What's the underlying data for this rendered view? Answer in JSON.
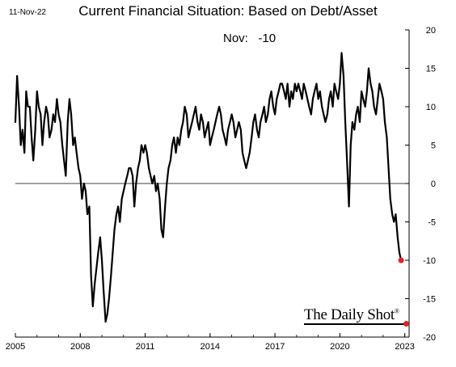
{
  "header": {
    "date_stamp": "11-Nov-22",
    "title": "Current Financial Situation: Based on Debt/Asset"
  },
  "annotation": {
    "month": "Nov:",
    "value": "-10"
  },
  "brand": {
    "name": "The Daily Shot",
    "mark": "®",
    "dot_color": "#e0202a"
  },
  "chart_data": {
    "type": "line",
    "title": "Current Financial Situation: Based on Debt/Asset",
    "xlabel": "",
    "ylabel": "",
    "xlim": [
      2005,
      2023.2
    ],
    "ylim": [
      -20,
      20
    ],
    "x_ticks": [
      "2005",
      "2008",
      "2011",
      "2014",
      "2017",
      "2020",
      "2023"
    ],
    "y_ticks": [
      "20",
      "15",
      "10",
      "5",
      "0",
      "-5",
      "-10",
      "-15",
      "-20"
    ],
    "y_axis_position": "right",
    "grid": false,
    "zero_line": true,
    "line_color": "#000000",
    "last_point_color": "#e0202a",
    "series": [
      {
        "x": [
          2005.0,
          2005.08,
          2005.17,
          2005.25,
          2005.33,
          2005.42,
          2005.5,
          2005.58,
          2005.67,
          2005.75,
          2005.83,
          2005.92,
          2006.0,
          2006.08,
          2006.17,
          2006.25,
          2006.33,
          2006.42,
          2006.5,
          2006.58,
          2006.67,
          2006.75,
          2006.83,
          2006.92,
          2007.0,
          2007.08,
          2007.17,
          2007.25,
          2007.33,
          2007.42,
          2007.5,
          2007.58,
          2007.67,
          2007.75,
          2007.83,
          2007.92,
          2008.0,
          2008.08,
          2008.17,
          2008.25,
          2008.33,
          2008.42,
          2008.5,
          2008.58,
          2008.67,
          2008.75,
          2008.83,
          2008.92,
          2009.0,
          2009.08,
          2009.17,
          2009.25,
          2009.33,
          2009.42,
          2009.5,
          2009.58,
          2009.67,
          2009.75,
          2009.83,
          2009.92,
          2010.0,
          2010.08,
          2010.17,
          2010.25,
          2010.33,
          2010.42,
          2010.5,
          2010.58,
          2010.67,
          2010.75,
          2010.83,
          2010.92,
          2011.0,
          2011.08,
          2011.17,
          2011.25,
          2011.33,
          2011.42,
          2011.5,
          2011.58,
          2011.67,
          2011.75,
          2011.83,
          2011.92,
          2012.0,
          2012.08,
          2012.17,
          2012.25,
          2012.33,
          2012.42,
          2012.5,
          2012.58,
          2012.67,
          2012.75,
          2012.83,
          2012.92,
          2013.0,
          2013.08,
          2013.17,
          2013.25,
          2013.33,
          2013.42,
          2013.5,
          2013.58,
          2013.67,
          2013.75,
          2013.83,
          2013.92,
          2014.0,
          2014.08,
          2014.17,
          2014.25,
          2014.33,
          2014.42,
          2014.5,
          2014.58,
          2014.67,
          2014.75,
          2014.83,
          2014.92,
          2015.0,
          2015.08,
          2015.17,
          2015.25,
          2015.33,
          2015.42,
          2015.5,
          2015.58,
          2015.67,
          2015.75,
          2015.83,
          2015.92,
          2016.0,
          2016.08,
          2016.17,
          2016.25,
          2016.33,
          2016.42,
          2016.5,
          2016.58,
          2016.67,
          2016.75,
          2016.83,
          2016.92,
          2017.0,
          2017.08,
          2017.17,
          2017.25,
          2017.33,
          2017.42,
          2017.5,
          2017.58,
          2017.67,
          2017.75,
          2017.83,
          2017.92,
          2018.0,
          2018.08,
          2018.17,
          2018.25,
          2018.33,
          2018.42,
          2018.5,
          2018.58,
          2018.67,
          2018.75,
          2018.83,
          2018.92,
          2019.0,
          2019.08,
          2019.17,
          2019.25,
          2019.33,
          2019.42,
          2019.5,
          2019.58,
          2019.67,
          2019.75,
          2019.83,
          2019.92,
          2020.0,
          2020.08,
          2020.17,
          2020.25,
          2020.33,
          2020.42,
          2020.5,
          2020.58,
          2020.67,
          2020.75,
          2020.83,
          2020.92,
          2021.0,
          2021.08,
          2021.17,
          2021.25,
          2021.33,
          2021.42,
          2021.5,
          2021.58,
          2021.67,
          2021.75,
          2021.83,
          2021.92,
          2022.0,
          2022.08,
          2022.17,
          2022.25,
          2022.33,
          2022.42,
          2022.5,
          2022.58,
          2022.67,
          2022.75,
          2022.83
        ],
        "values": [
          8,
          14,
          10,
          5,
          7,
          4,
          12,
          10,
          10,
          6,
          3,
          7,
          12,
          10,
          9,
          5,
          8,
          10,
          9,
          6,
          7,
          9,
          8,
          11,
          9,
          8,
          5,
          3,
          1,
          8,
          11,
          9,
          5,
          6,
          4,
          2,
          1,
          -2,
          0,
          -1,
          -4,
          -3,
          -12,
          -16,
          -13,
          -11,
          -9,
          -7,
          -10,
          -14,
          -18,
          -17,
          -15,
          -12,
          -9,
          -6,
          -4,
          -3,
          -5,
          -2,
          -1,
          0,
          1,
          2,
          2,
          1,
          -3,
          0,
          2,
          3,
          5,
          4,
          5,
          4,
          2,
          1,
          0,
          1,
          -1,
          0,
          -2,
          -6,
          -7,
          -3,
          0,
          2,
          3,
          5,
          6,
          4,
          6,
          5,
          7,
          8,
          10,
          9,
          6,
          7,
          8,
          9,
          10,
          8,
          7,
          9,
          8,
          6,
          7,
          8,
          5,
          6,
          7,
          8,
          9,
          10,
          9,
          7,
          6,
          5,
          7,
          8,
          9,
          8,
          6,
          7,
          8,
          7,
          4,
          3,
          2,
          3,
          4,
          6,
          8,
          9,
          7,
          6,
          8,
          9,
          10,
          8,
          9,
          11,
          12,
          10,
          9,
          11,
          12,
          13,
          13,
          12,
          11,
          13,
          10,
          12,
          11,
          13,
          12,
          13,
          12,
          11,
          13,
          12,
          11,
          10,
          9,
          11,
          12,
          13,
          11,
          12,
          10,
          9,
          8,
          9,
          11,
          12,
          10,
          13,
          12,
          11,
          13,
          17,
          14,
          8,
          3,
          -3,
          5,
          8,
          7,
          9,
          10,
          8,
          12,
          11,
          10,
          12,
          15,
          13,
          12,
          10,
          9,
          11,
          13,
          12,
          11,
          8,
          6,
          2,
          -2,
          -4,
          -5,
          -4,
          -7,
          -9,
          -10
        ]
      }
    ]
  }
}
